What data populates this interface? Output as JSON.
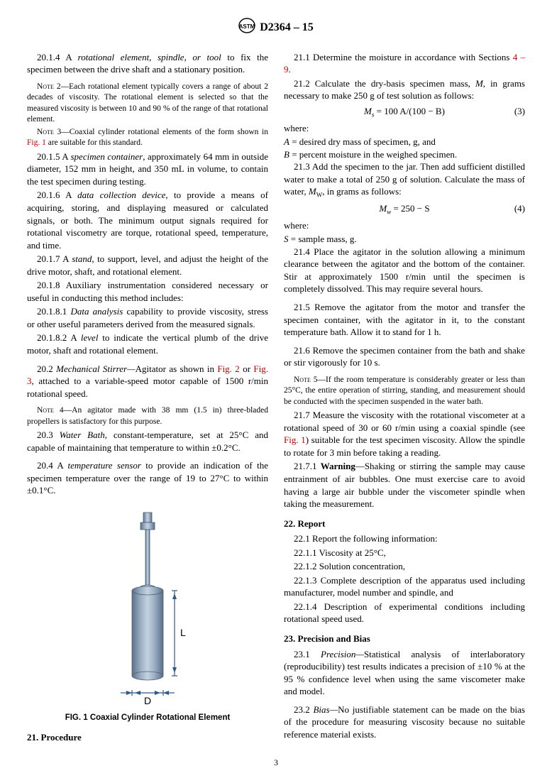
{
  "doc": {
    "designation": "D2364 – 15",
    "page_number": "3"
  },
  "left": {
    "p2014": "20.1.4 A ",
    "p2014_em": "rotational element, spindle, or tool",
    "p2014_b": " to fix the specimen between the drive shaft and a stationary position.",
    "note2a": "NOTE 2—Each rotational element typically covers a range of about 2 decades of viscosity. The rotational element is selected so that the measured viscosity is between 10 and 90 % of the range of that rotational element.",
    "note3a": "NOTE 3—Coaxial cylinder rotational elements of the form shown in ",
    "note3_fig": "Fig. 1",
    "note3b": " are suitable for this standard.",
    "p2015a": "20.1.5 A ",
    "p2015_em": "specimen container",
    "p2015b": ", approximately 64 mm in outside diameter, 152 mm in height, and 350 mL in volume, to contain the test specimen during testing.",
    "p2016a": "20.1.6 A ",
    "p2016_em": "data collection device",
    "p2016b": ", to provide a means of acquiring, storing, and displaying measured or calculated signals, or both. The minimum output signals required for rotational viscometry are torque, rotational speed, temperature, and time.",
    "p2017a": "20.1.7 A ",
    "p2017_em": "stand",
    "p2017b": ", to support, level, and adjust the height of the drive motor, shaft, and rotational element.",
    "p2018": "20.1.8 Auxiliary instrumentation considered necessary or useful in conducting this method includes:",
    "p20181a": "20.1.8.1 ",
    "p20181_em": "Data analysis",
    "p20181b": " capability to provide viscosity, stress or other useful parameters derived from the measured signals.",
    "p20182a": "20.1.8.2 A ",
    "p20182_em": "level",
    "p20182b": " to indicate the vertical plumb of the drive motor, shaft and rotational element.",
    "p202a": "20.2 ",
    "p202_em": "Mechanical Stirrer—",
    "p202b": "Agitator as shown in ",
    "p202_fig2": "Fig. 2",
    "p202c": " or ",
    "p202_fig3": "Fig. 3",
    "p202d": ", attached to a variable-speed motor capable of 1500 r/min rotational speed.",
    "note4": "NOTE 4—An agitator made with 38 mm (1.5 in) three-bladed propellers is satisfactory for this purpose.",
    "p203a": "20.3 ",
    "p203_em": "Water Bath,",
    "p203b": " constant-temperature, set at 25°C and capable of maintaining that temperature to within ±0.2°C.",
    "p204a": "20.4 A ",
    "p204_em": "temperature sensor",
    "p204b": " to provide an indication of the specimen temperature over the range of 19 to 27°C to within ±0.1°C.",
    "fig1_caption": "FIG. 1 Coaxial Cylinder Rotational Element",
    "fig1_D": "D",
    "fig1_L": "L"
  },
  "right": {
    "sec21": "21. Procedure",
    "p211a": "21.1 Determine the moisture in accordance with Sections ",
    "p211_ref": "4 – 9",
    "p211b": ".",
    "p212a": "21.2 Calculate the dry-basis specimen mass, ",
    "p212_M": "M",
    "p212b": ", in grams necessary to make 250 g of test solution as follows:",
    "eq3": "M",
    "eq3_sub": "s",
    "eq3_rhs": " = 100 A/(100 − B)",
    "eq3_num": "(3)",
    "where": "where:",
    "whereA_sym": "A",
    "whereA": "   =  desired dry mass of specimen, g, and",
    "whereB_sym": "B",
    "whereB": "   =  percent moisture in the weighed specimen.",
    "p213a": "21.3 Add the specimen to the jar. Then add sufficient distilled water to make a total of 250 g of solution. Calculate the mass of water, ",
    "p213_Mw": "M",
    "p213_Mw_sub": "W",
    "p213b": ", in grams as follows:",
    "eq4": "M",
    "eq4_sub": "w",
    "eq4_rhs": " = 250 − S",
    "eq4_num": "(4)",
    "where2": "where:",
    "whereS_sym": "S",
    "whereS": "   =  sample mass, g.",
    "p214": "21.4 Place the agitator in the solution allowing a minimum clearance between the agitator and the bottom of the container. Stir at approximately 1500 r/min until the specimen is completely dissolved. This may require several hours.",
    "p215": "21.5 Remove the agitator from the motor and transfer the specimen container, with the agitator in it, to the constant temperature bath. Allow it to stand for 1 h.",
    "p216": "21.6 Remove the specimen container from the bath and shake or stir vigorously for 10 s.",
    "note5": "NOTE 5—If the room temperature is considerably greater or less than 25°C, the entire operation of stirring, standing, and measurement should be conducted with the specimen suspended in the water bath.",
    "p217a": "21.7 Measure the viscosity with the rotational viscometer at a rotational speed of 30 or 60 r/min using a coaxial spindle (see ",
    "p217_fig": "Fig. 1",
    "p217b": ") suitable for the test specimen viscosity. Allow the spindle to rotate for 3 min before taking a reading.",
    "p2171a": "21.7.1 ",
    "p2171_warn": "Warning",
    "p2171b": "—Shaking or stirring the sample may cause entrainment of air bubbles. One must exercise care to avoid having a large air bubble under the viscometer spindle when taking the measurement.",
    "sec22": "22. Report",
    "p221": "22.1 Report the following information:",
    "p2211": "22.1.1 Viscosity at 25°C,",
    "p2212": "22.1.2 Solution concentration,",
    "p2213": "22.1.3 Complete description of the apparatus used including manufacturer, model number and spindle, and",
    "p2214": "22.1.4 Description of experimental conditions including rotational speed used.",
    "sec23": "23. Precision and Bias",
    "p231a": "23.1 ",
    "p231_em": "Precision—",
    "p231b": "Statistical analysis of interlaboratory (reproducibility) test results indicates a precision of ±10 % at the 95 % confidence level when using the same viscometer make and model.",
    "p232a": "23.2 ",
    "p232_em": "Bias—",
    "p232b": "No justifiable statement can be made on the bias of the procedure for measuring viscosity because no suitable reference material exists."
  },
  "colors": {
    "figref": "#c00000",
    "text": "#000000",
    "spindle_fill": "#7a8fa6",
    "spindle_stroke": "#4a5d73",
    "dimension": "#2b5a8a"
  }
}
